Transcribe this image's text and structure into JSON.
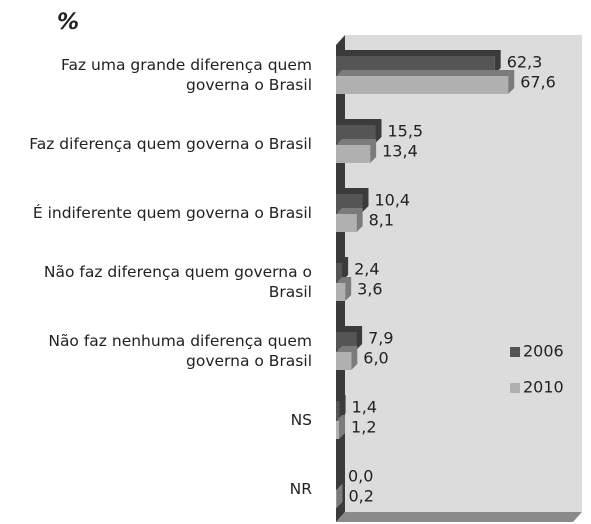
{
  "chart_data": {
    "type": "bar",
    "orientation": "horizontal",
    "title": "%",
    "categories": [
      "Faz uma grande diferença quem governa o Brasil",
      "Faz diferença quem governa o Brasil",
      "É indiferente quem governa o Brasil",
      "Não faz diferença quem governa o Brasil",
      "Não faz nenhuma diferença quem governa o Brasil",
      "NS",
      "NR"
    ],
    "series": [
      {
        "name": "2006",
        "color": "#555555",
        "values": [
          62.3,
          15.5,
          10.4,
          2.4,
          7.9,
          1.4,
          0.0
        ],
        "value_labels": [
          "62,3",
          "15,5",
          "10,4",
          "2,4",
          "7,9",
          "1,4",
          "0,0"
        ]
      },
      {
        "name": "2010",
        "color": "#b0b0b0",
        "values": [
          67.6,
          13.4,
          8.1,
          3.6,
          6.0,
          1.2,
          0.2
        ],
        "value_labels": [
          "67,6",
          "13,4",
          "8,1",
          "3,6",
          "6,0",
          "1,2",
          "0,2"
        ]
      }
    ],
    "xlim": [
      0,
      95
    ],
    "legend": "right"
  }
}
